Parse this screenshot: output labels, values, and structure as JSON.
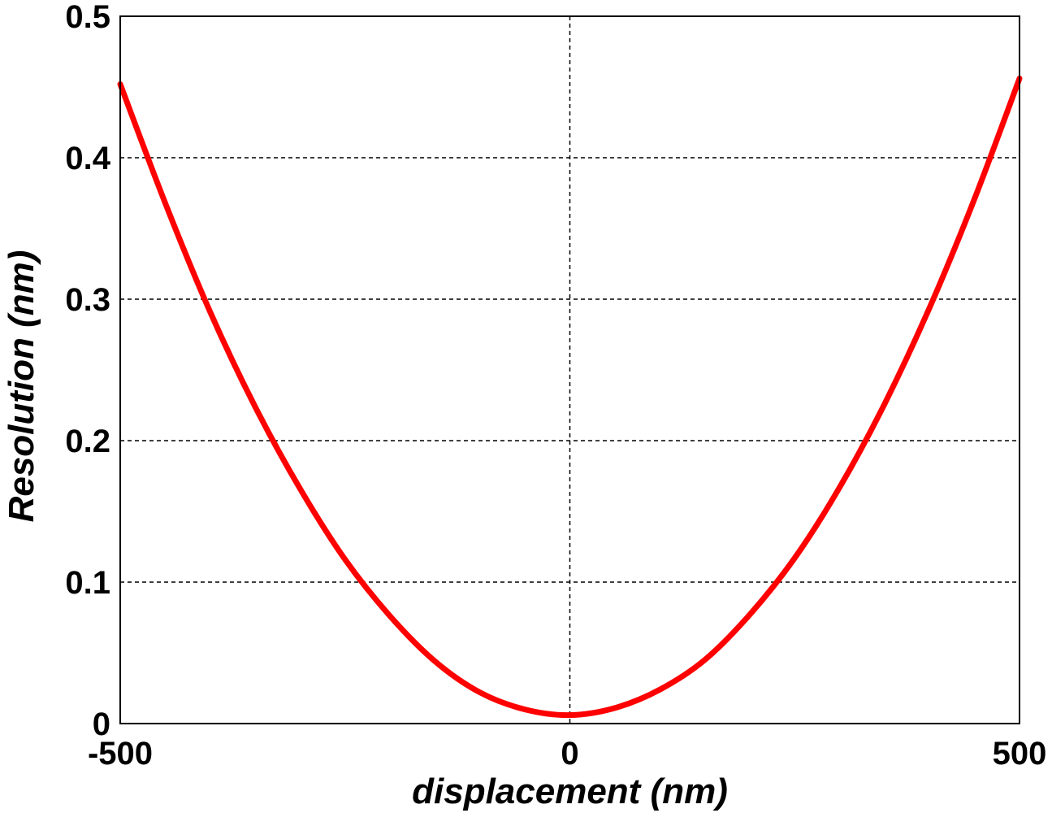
{
  "chart_data": {
    "type": "line",
    "title": "",
    "xlabel": "displacement (nm)",
    "ylabel": "Resolution (nm)",
    "xlim": [
      -500,
      500
    ],
    "ylim": [
      0,
      0.5
    ],
    "xticks": [
      -500,
      0,
      500
    ],
    "xtick_labels": [
      "-500",
      "0",
      "500"
    ],
    "yticks": [
      0,
      0.1,
      0.2,
      0.3,
      0.4,
      0.5
    ],
    "ytick_labels": [
      "0",
      "0.1",
      "0.2",
      "0.3",
      "0.4",
      "0.5"
    ],
    "grid": true,
    "legend": "none",
    "series": [
      {
        "color": "#ff0000",
        "x": [
          -500,
          -450,
          -400,
          -350,
          -300,
          -250,
          -200,
          -150,
          -100,
          -50,
          0,
          50,
          100,
          150,
          200,
          250,
          300,
          350,
          400,
          450,
          500
        ],
        "y": [
          0.452,
          0.368,
          0.291,
          0.224,
          0.166,
          0.116,
          0.076,
          0.044,
          0.022,
          0.01,
          0.006,
          0.011,
          0.024,
          0.045,
          0.077,
          0.117,
          0.167,
          0.226,
          0.294,
          0.371,
          0.456
        ]
      }
    ]
  }
}
